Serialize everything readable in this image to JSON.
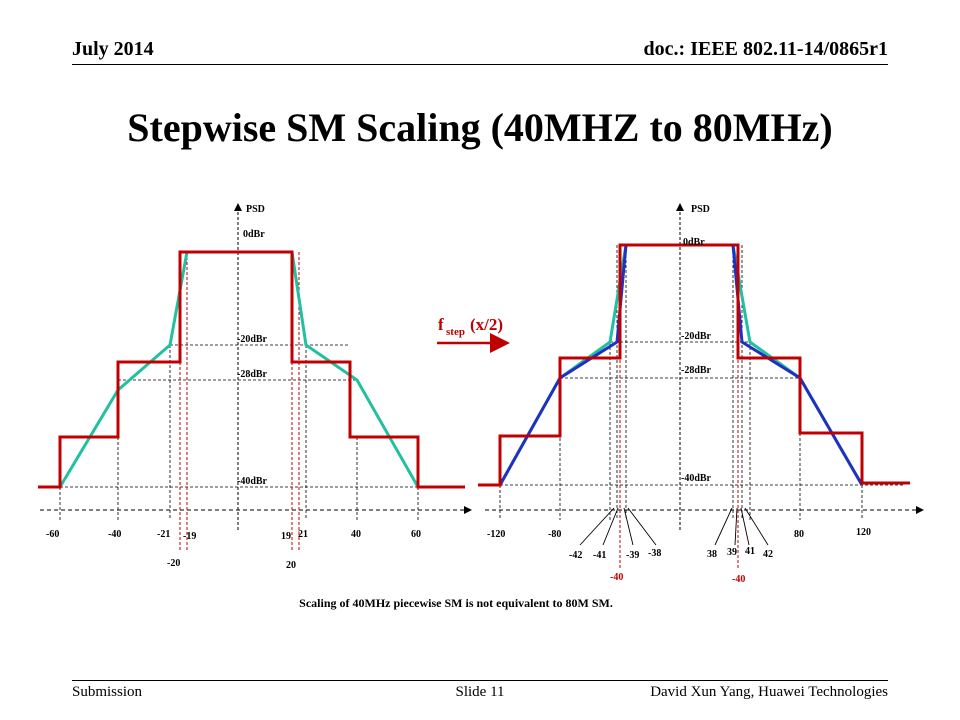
{
  "header": {
    "date": "July 2014",
    "doc": "doc.: IEEE 802.11-14/0865r1"
  },
  "title": "Stepwise SM Scaling (40MHZ to 80MHz)",
  "footer": {
    "left": "Submission",
    "center": "Slide 11",
    "right": "David Xun Yang, Huawei Technologies"
  },
  "caption": "Scaling of 40MHz piecewise SM is not equivalent to 80M SM.",
  "arrow": {
    "label_f": "f",
    "label_sub": "step",
    "label_arg": "(x/2)"
  },
  "colors": {
    "step": "#c00000",
    "smooth": "#20c0a0",
    "scaled": "#2030c0",
    "marker": "#c00000"
  },
  "left_plot": {
    "axis_label": "PSD",
    "levels": [
      "0dBr",
      "-20dBr",
      "-28dBr",
      "-40dBr"
    ],
    "x_ticks": [
      "-60",
      "-40",
      "-21",
      "-19",
      "19",
      "21",
      "40",
      "60"
    ],
    "x_ticks_low": [
      "-20",
      "20"
    ]
  },
  "right_plot": {
    "axis_label": "PSD",
    "levels": [
      "0dBr",
      "-20dBr",
      "-28dBr",
      "-40dBr"
    ],
    "x_ticks": [
      "-120",
      "-80",
      "80",
      "120"
    ],
    "x_ticks_low": [
      "-42",
      "-41",
      "-39",
      "-38",
      "38",
      "39",
      "41",
      "42"
    ],
    "marker_labels": [
      "-40",
      "-40"
    ]
  }
}
